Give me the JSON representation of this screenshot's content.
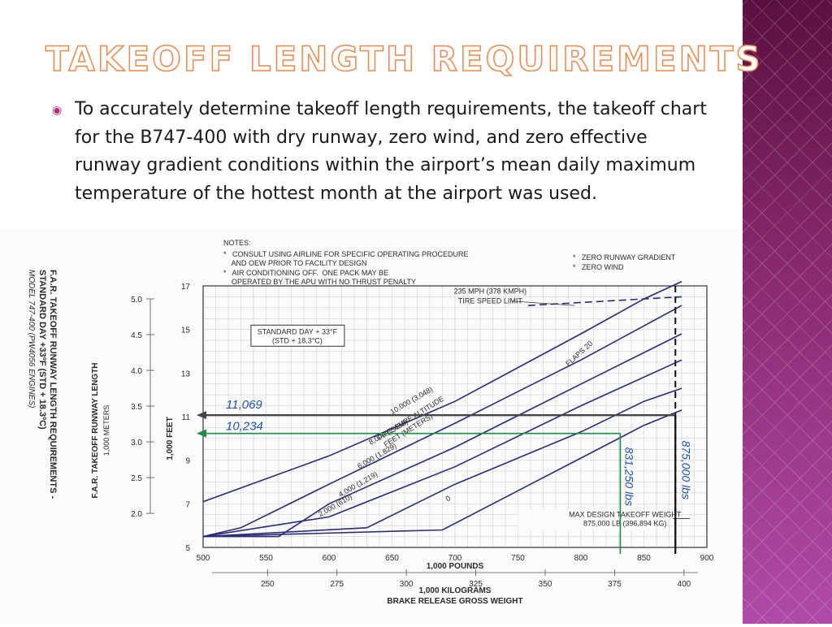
{
  "slide": {
    "title": "TAKEOFF LENGTH REQUIREMENTS",
    "bullet_text": "To accurately determine takeoff length requirements, the takeoff chart for the B747-400 with dry runway, zero wind, and zero effective runway gradient conditions within the airport’s mean daily maximum temperature of the hottest month at the airport was used."
  },
  "colors": {
    "accent": "#e88a50",
    "sidebar": "#8a2a70",
    "curves": "#2a2a7a",
    "annotation_blue": "#2255aa",
    "annotation_green": "#228844"
  },
  "chart_data": {
    "type": "line",
    "title_lines": [
      "F.A.R. TAKEOFF RUNWAY LENGTH REQUIREMENTS -",
      "STANDARD DAY +33ºF (STD + 18.3ºC)",
      "MODEL 747-400 (PW4056 ENGINES)"
    ],
    "notes": {
      "header": "NOTES:",
      "left": [
        "*   CONSULT USING AIRLINE FOR SPECIFIC OPERATING PROCEDURE",
        "    AND OEW PRIOR TO FACILITY DESIGN",
        "*   AIR CONDITIONING OFF.  ONE PACK MAY BE",
        "    OPERATED BY THE APU WITH NO THRUST PENALTY"
      ],
      "right": [
        "*   ZERO RUNWAY GRADIENT",
        "*   ZERO WIND"
      ]
    },
    "std_day_box": [
      "STANDARD DAY + 33°F",
      "(STD + 18.3°C)"
    ],
    "tire_speed_label": [
      "235 MPH (378 KMPH)",
      "TIRE SPEED LIMIT"
    ],
    "flaps_label": "FLAPS 20",
    "pressure_altitude_label": [
      "PRESSURE ALTITUDE",
      "FEET      (METERS)"
    ],
    "max_design_label": [
      "MAX DESIGN TAKEOFF WEIGHT",
      "875,000 LB (396,894 KG)"
    ],
    "ylabel_feet": "1,000 FEET",
    "ylabel_meters": [
      "F.A.R. TAKEOFF RUNWAY LENGTH",
      "1,000 METERS"
    ],
    "xlabel_pounds": "1,000 POUNDS",
    "xlabel_kg": "1,000 KILOGRAMS",
    "xlabel_bottom": "BRAKE RELEASE GROSS WEIGHT",
    "xlim": [
      500,
      900
    ],
    "ylim": [
      5,
      17
    ],
    "x_ticks_pounds": [
      "500",
      "550",
      "600",
      "650",
      "700",
      "750",
      "800",
      "850",
      "900"
    ],
    "x_ticks_kg": [
      "250",
      "275",
      "300",
      "325",
      "350",
      "375",
      "400"
    ],
    "y_ticks_feet": [
      "5",
      "7",
      "9",
      "11",
      "13",
      "15",
      "17"
    ],
    "y_ticks_meters": [
      "2.0",
      "2.5",
      "3.0",
      "3.5",
      "4.0",
      "4.5",
      "5.0"
    ],
    "series": [
      {
        "name": "10,000   (3,048)",
        "x": [
          500,
          600,
          700,
          800,
          850,
          880
        ],
        "y": [
          7.1,
          9.2,
          11.7,
          14.8,
          16.4,
          17.2
        ]
      },
      {
        "name": "8,000   (2,438)",
        "x": [
          500,
          530,
          600,
          700,
          800,
          880
        ],
        "y": [
          5.5,
          5.9,
          7.9,
          10.7,
          13.6,
          16.1
        ]
      },
      {
        "name": "6,000   (1,829)",
        "x": [
          500,
          560,
          600,
          700,
          800,
          880
        ],
        "y": [
          5.5,
          5.5,
          7.0,
          9.6,
          12.5,
          14.8
        ]
      },
      {
        "name": "4,000   (1,219)",
        "x": [
          500,
          600,
          700,
          800,
          880
        ],
        "y": [
          5.5,
          6.4,
          8.7,
          11.5,
          13.6
        ]
      },
      {
        "name": "2,000   (610)",
        "x": [
          500,
          630,
          700,
          800,
          850,
          880
        ],
        "y": [
          5.5,
          5.9,
          7.9,
          10.3,
          11.7,
          12.3
        ]
      },
      {
        "name": "0",
        "x": [
          500,
          690,
          750,
          800,
          850,
          880
        ],
        "y": [
          5.5,
          5.8,
          7.6,
          9.1,
          10.6,
          11.3
        ]
      }
    ],
    "tire_speed_limit": {
      "x": [
        758,
        880
      ],
      "y": [
        16.1,
        16.5
      ]
    },
    "max_design_weight_pounds": 875,
    "annotations": [
      {
        "text": "11,069",
        "length_ft": 11.07,
        "weight_pounds": 875,
        "color": "blue"
      },
      {
        "text": "10,234",
        "length_ft": 10.23,
        "weight_pounds": 831.25,
        "color": "green"
      },
      {
        "text": "831,250 lbs",
        "weight_pounds": 831.25
      },
      {
        "text": "875,000 lbs",
        "weight_pounds": 875
      }
    ]
  }
}
